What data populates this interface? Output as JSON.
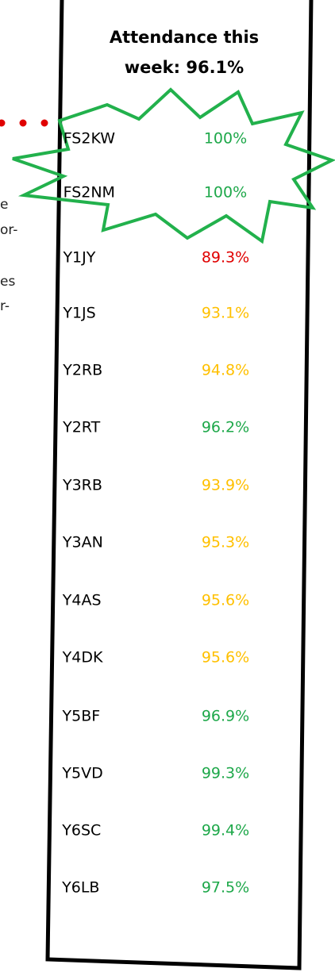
{
  "title": [
    "Attendance this",
    "week: 96.1%"
  ],
  "side_text": [
    "e",
    "or-",
    "es",
    "r-"
  ],
  "rows": [
    {
      "name": "FS2KW",
      "attendance": "100%",
      "color": "#1ea84a"
    },
    {
      "name": "FS2NM",
      "attendance": "100%",
      "color": "#1ea84a"
    },
    {
      "name": "Y1JY",
      "attendance": "89.3%",
      "color": "#e00000"
    },
    {
      "name": "Y1JS",
      "attendance": "93.1%",
      "color": "#ffc000"
    },
    {
      "name": "Y2RB",
      "attendance": "94.8%",
      "color": "#ffc000"
    },
    {
      "name": "Y2RT",
      "attendance": "96.2%",
      "color": "#1ea84a"
    },
    {
      "name": "Y3RB",
      "attendance": "93.9%",
      "color": "#ffc000"
    },
    {
      "name": "Y3AN",
      "attendance": "95.3%",
      "color": "#ffc000"
    },
    {
      "name": "Y4AS",
      "attendance": "95.6%",
      "color": "#ffc000"
    },
    {
      "name": "Y4DK",
      "attendance": "95.6%",
      "color": "#ffc000"
    },
    {
      "name": "Y5BF",
      "attendance": "96.9%",
      "color": "#1ea84a"
    },
    {
      "name": "Y5VD",
      "attendance": "99.3%",
      "color": "#1ea84a"
    },
    {
      "name": "Y6SC",
      "attendance": "99.4%",
      "color": "#1ea84a"
    },
    {
      "name": "Y6LB",
      "attendance": "97.5%",
      "color": "#1ea84a"
    }
  ]
}
